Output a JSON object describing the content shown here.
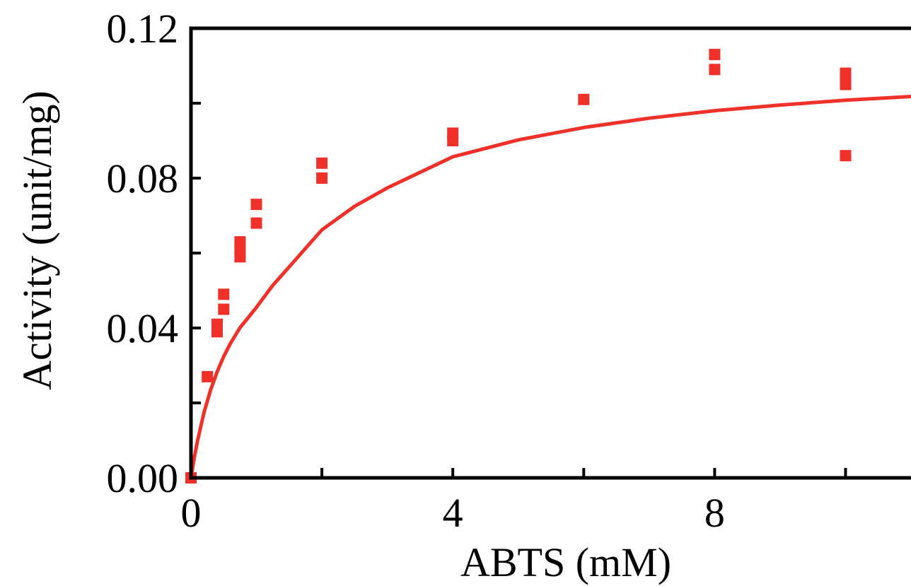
{
  "chart_data": {
    "type": "scatter",
    "xlabel": "ABTS (mM)",
    "ylabel": "Activity (unit/mg)",
    "xlim": [
      0,
      11
    ],
    "ylim": [
      0,
      0.12
    ],
    "x_ticks": [
      0,
      2,
      4,
      6,
      8,
      10
    ],
    "x_tick_labels": [
      "0",
      "",
      "4",
      "",
      "8",
      ""
    ],
    "y_ticks": [
      0,
      0.02,
      0.04,
      0.06,
      0.08,
      0.1,
      0.12
    ],
    "y_tick_labels": [
      "0.00",
      "",
      "0.04",
      "",
      "0.08",
      "",
      "0.12"
    ],
    "grid": false,
    "color": "#f0312a",
    "series": [
      {
        "marker": "square",
        "points": [
          {
            "x": 0,
            "y": 0.0
          },
          {
            "x": 0.25,
            "y": 0.027
          },
          {
            "x": 0.4,
            "y": 0.039
          },
          {
            "x": 0.4,
            "y": 0.041
          },
          {
            "x": 0.5,
            "y": 0.045
          },
          {
            "x": 0.5,
            "y": 0.049
          },
          {
            "x": 0.75,
            "y": 0.059
          },
          {
            "x": 0.75,
            "y": 0.061
          },
          {
            "x": 0.75,
            "y": 0.063
          },
          {
            "x": 1.0,
            "y": 0.068
          },
          {
            "x": 1.0,
            "y": 0.073
          },
          {
            "x": 2.0,
            "y": 0.08
          },
          {
            "x": 2.0,
            "y": 0.084
          },
          {
            "x": 4.0,
            "y": 0.09
          },
          {
            "x": 4.0,
            "y": 0.092
          },
          {
            "x": 6.0,
            "y": 0.101
          },
          {
            "x": 8.0,
            "y": 0.109
          },
          {
            "x": 8.0,
            "y": 0.113
          },
          {
            "x": 10.0,
            "y": 0.086
          },
          {
            "x": 10.0,
            "y": 0.105
          },
          {
            "x": 10.0,
            "y": 0.108
          }
        ]
      },
      {
        "type": "line",
        "x": [
          0,
          0.05,
          0.1,
          0.2,
          0.3,
          0.4,
          0.5,
          0.6,
          0.75,
          1.0,
          1.25,
          1.5,
          2.0,
          2.5,
          3.0,
          4.0,
          5.0,
          6.0,
          7.0,
          8.0,
          9.0,
          10.0,
          11.0
        ],
        "y": [
          0,
          0.0053,
          0.0099,
          0.0175,
          0.0235,
          0.0283,
          0.0324,
          0.0358,
          0.0401,
          0.0455,
          0.0514,
          0.0563,
          0.0662,
          0.0725,
          0.0774,
          0.0857,
          0.0902,
          0.0935,
          0.096,
          0.098,
          0.0995,
          0.1008,
          0.1018
        ]
      }
    ]
  }
}
